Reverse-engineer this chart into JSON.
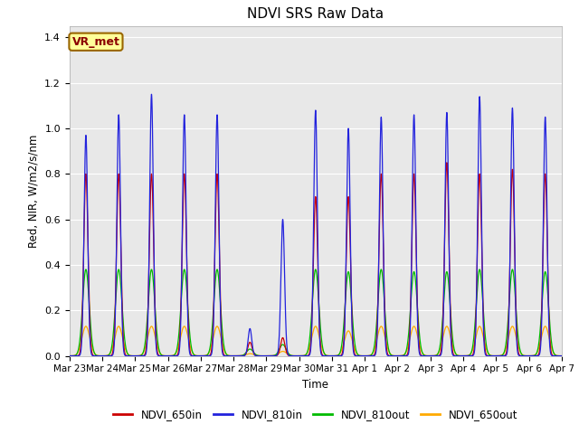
{
  "title": "NDVI SRS Raw Data",
  "ylabel": "Red, NIR, W/m2/s/nm",
  "xlabel": "Time",
  "annotation": "VR_met",
  "ylim": [
    0,
    1.45
  ],
  "background_color": "#e8e8e8",
  "legend": [
    {
      "label": "NDVI_650in",
      "color": "#cc0000"
    },
    {
      "label": "NDVI_810in",
      "color": "#2222dd"
    },
    {
      "label": "NDVI_810out",
      "color": "#00bb00"
    },
    {
      "label": "NDVI_650out",
      "color": "#ffaa00"
    }
  ],
  "xtick_labels": [
    "Mar 23",
    "Mar 24",
    "Mar 25",
    "Mar 26",
    "Mar 27",
    "Mar 28",
    "Mar 29",
    "Mar 30",
    "Mar 31",
    "Apr 1",
    "Apr 2",
    "Apr 3",
    "Apr 4",
    "Apr 5",
    "Apr 6",
    "Apr 7"
  ],
  "n_days": 15,
  "peaks_650in": [
    0.8,
    0.8,
    0.8,
    0.8,
    0.8,
    0.06,
    0.08,
    0.7,
    0.7,
    0.8,
    0.8,
    0.85,
    0.8,
    0.82,
    0.8
  ],
  "peaks_810in": [
    0.97,
    1.06,
    1.15,
    1.06,
    1.06,
    0.12,
    0.6,
    1.08,
    1.0,
    1.05,
    1.06,
    1.07,
    1.14,
    1.09,
    1.05
  ],
  "peaks_810out": [
    0.38,
    0.38,
    0.38,
    0.38,
    0.38,
    0.03,
    0.05,
    0.38,
    0.37,
    0.38,
    0.37,
    0.37,
    0.38,
    0.38,
    0.37
  ],
  "peaks_650out": [
    0.13,
    0.13,
    0.13,
    0.13,
    0.13,
    0.01,
    0.02,
    0.13,
    0.11,
    0.13,
    0.13,
    0.13,
    0.13,
    0.13,
    0.13
  ],
  "peak_sigma_810in": 0.055,
  "peak_sigma_650in": 0.065,
  "peak_sigma_810out": 0.1,
  "peak_sigma_650out": 0.12
}
